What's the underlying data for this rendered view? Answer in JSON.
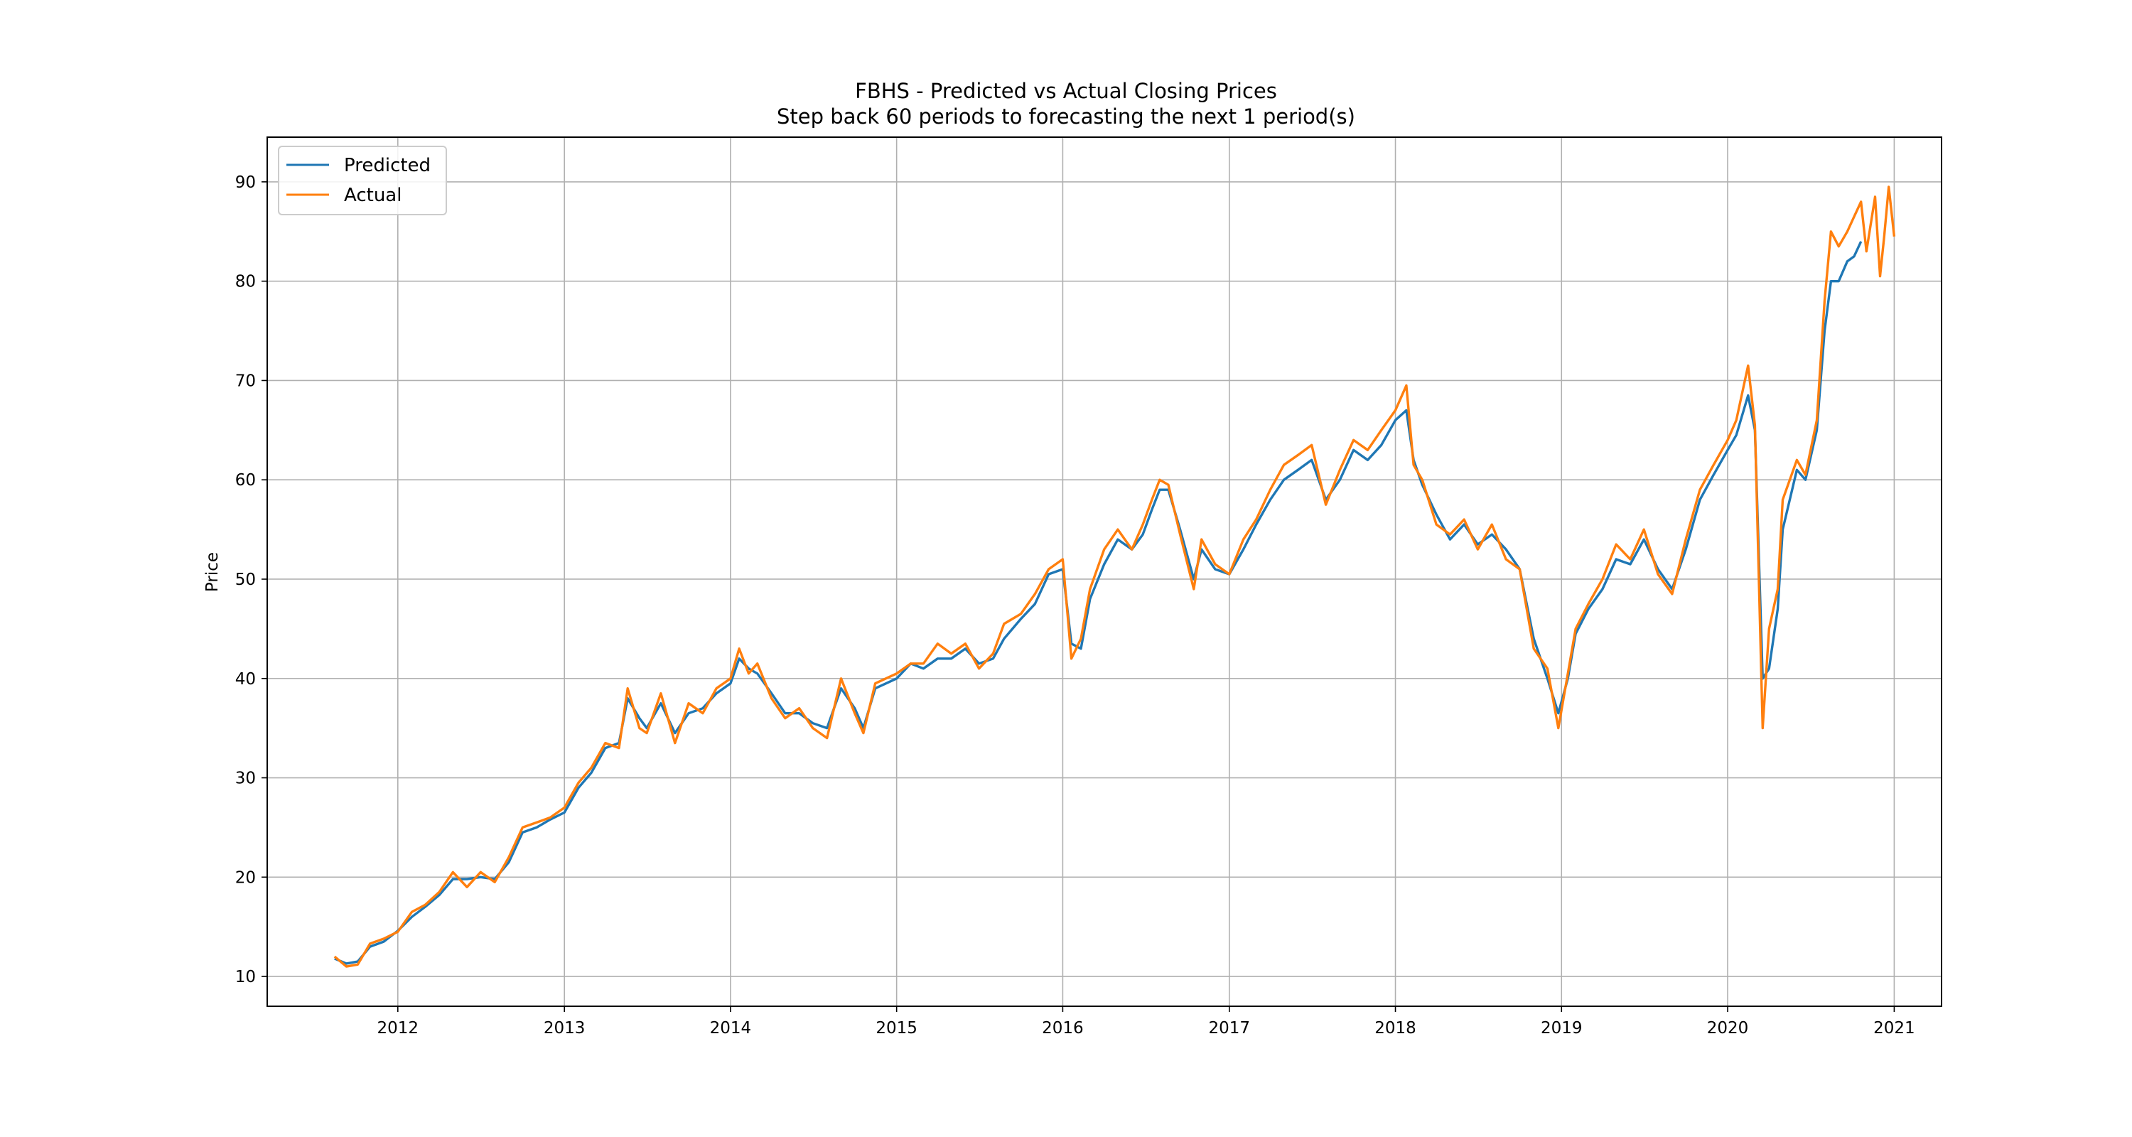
{
  "chart_data": {
    "type": "line",
    "title": "FBHS - Predicted vs Actual Closing Prices",
    "subtitle": "Step back 60 periods to forecasting the next 1 period(s)",
    "xlabel": "",
    "ylabel": "Price",
    "xlim": [
      "2011-03-20",
      "2021-04-15"
    ],
    "ylim": [
      7,
      94.5
    ],
    "x_ticks": [
      "2012",
      "2013",
      "2014",
      "2015",
      "2016",
      "2017",
      "2018",
      "2019",
      "2020",
      "2021"
    ],
    "y_ticks": [
      10,
      20,
      30,
      40,
      50,
      60,
      70,
      80,
      90
    ],
    "grid": true,
    "legend_position": "top-left",
    "colors": {
      "predicted": "#1f77b4",
      "actual": "#ff7f0e"
    },
    "series": [
      {
        "name": "Predicted",
        "x": [
          "2011-08-15",
          "2011-09-10",
          "2011-10-05",
          "2011-11-01",
          "2011-12-01",
          "2012-01-01",
          "2012-02-01",
          "2012-03-01",
          "2012-04-01",
          "2012-05-01",
          "2012-06-01",
          "2012-07-01",
          "2012-08-01",
          "2012-09-01",
          "2012-10-01",
          "2012-11-01",
          "2012-12-01",
          "2013-01-01",
          "2013-02-01",
          "2013-03-01",
          "2013-04-01",
          "2013-05-01",
          "2013-05-20",
          "2013-06-15",
          "2013-07-01",
          "2013-08-01",
          "2013-09-01",
          "2013-10-01",
          "2013-11-01",
          "2013-12-01",
          "2014-01-01",
          "2014-01-20",
          "2014-02-10",
          "2014-03-01",
          "2014-04-01",
          "2014-05-01",
          "2014-06-01",
          "2014-07-01",
          "2014-08-01",
          "2014-09-01",
          "2014-10-01",
          "2014-10-20",
          "2014-11-15",
          "2015-01-01",
          "2015-02-01",
          "2015-03-01",
          "2015-04-01",
          "2015-05-01",
          "2015-06-01",
          "2015-07-01",
          "2015-08-01",
          "2015-08-25",
          "2015-10-01",
          "2015-11-01",
          "2015-12-01",
          "2016-01-01",
          "2016-01-20",
          "2016-02-10",
          "2016-03-01",
          "2016-04-01",
          "2016-05-01",
          "2016-06-01",
          "2016-06-25",
          "2016-07-15",
          "2016-08-01",
          "2016-08-20",
          "2016-09-15",
          "2016-10-15",
          "2016-11-01",
          "2016-12-01",
          "2017-01-01",
          "2017-02-01",
          "2017-03-01",
          "2017-04-01",
          "2017-05-01",
          "2017-06-01",
          "2017-07-01",
          "2017-08-01",
          "2017-09-01",
          "2017-10-01",
          "2017-11-01",
          "2017-12-01",
          "2018-01-01",
          "2018-01-25",
          "2018-02-10",
          "2018-03-01",
          "2018-04-01",
          "2018-05-01",
          "2018-06-01",
          "2018-07-01",
          "2018-08-01",
          "2018-09-01",
          "2018-10-01",
          "2018-11-01",
          "2018-12-01",
          "2018-12-25",
          "2019-01-15",
          "2019-02-01",
          "2019-03-01",
          "2019-04-01",
          "2019-05-01",
          "2019-06-01",
          "2019-07-01",
          "2019-08-01",
          "2019-09-01",
          "2019-10-01",
          "2019-11-01",
          "2019-12-01",
          "2020-01-01",
          "2020-01-20",
          "2020-02-15",
          "2020-03-01",
          "2020-03-18",
          "2020-04-01",
          "2020-04-20",
          "2020-05-01",
          "2020-06-01",
          "2020-06-20",
          "2020-07-15",
          "2020-08-01",
          "2020-08-15",
          "2020-09-01",
          "2020-09-20",
          "2020-10-05",
          "2020-10-20"
        ],
        "y": [
          11.8,
          11.3,
          11.5,
          13.0,
          13.5,
          14.6,
          16.0,
          17.0,
          18.2,
          19.8,
          19.8,
          20.0,
          19.8,
          21.5,
          24.5,
          25.0,
          25.8,
          26.5,
          29.0,
          30.5,
          33.0,
          33.5,
          38.0,
          36.0,
          35.0,
          37.5,
          34.5,
          36.5,
          37.0,
          38.5,
          39.5,
          42.0,
          41.0,
          40.5,
          38.5,
          36.5,
          36.5,
          35.5,
          35.0,
          39.0,
          37.0,
          35.0,
          39.0,
          40.0,
          41.5,
          41.0,
          42.0,
          42.0,
          43.0,
          41.5,
          42.0,
          44.0,
          46.0,
          47.5,
          50.5,
          51.0,
          43.5,
          43.0,
          48.0,
          51.5,
          54.0,
          53.0,
          54.5,
          57.0,
          59.0,
          59.0,
          55.0,
          50.0,
          53.0,
          51.0,
          50.5,
          53.0,
          55.5,
          58.0,
          60.0,
          61.0,
          62.0,
          58.0,
          60.0,
          63.0,
          62.0,
          63.5,
          66.0,
          67.0,
          62.0,
          59.5,
          56.5,
          54.0,
          55.5,
          53.5,
          54.5,
          53.0,
          51.0,
          44.0,
          40.0,
          36.5,
          40.0,
          44.5,
          47.0,
          49.0,
          52.0,
          51.5,
          54.0,
          51.0,
          49.0,
          53.0,
          58.0,
          60.5,
          63.0,
          64.5,
          68.5,
          65.0,
          40.0,
          41.0,
          47.0,
          55.0,
          61.0,
          60.0,
          65.0,
          75.0,
          80.0,
          80.0,
          82.0,
          82.5,
          84.0
        ]
      },
      {
        "name": "Actual",
        "x": [
          "2011-08-15",
          "2011-09-10",
          "2011-10-05",
          "2011-11-01",
          "2011-12-01",
          "2012-01-01",
          "2012-02-01",
          "2012-03-01",
          "2012-04-01",
          "2012-05-01",
          "2012-06-01",
          "2012-07-01",
          "2012-08-01",
          "2012-09-01",
          "2012-10-01",
          "2012-11-01",
          "2012-12-01",
          "2013-01-01",
          "2013-02-01",
          "2013-03-01",
          "2013-04-01",
          "2013-05-01",
          "2013-05-20",
          "2013-06-15",
          "2013-07-01",
          "2013-08-01",
          "2013-09-01",
          "2013-10-01",
          "2013-11-01",
          "2013-12-01",
          "2014-01-01",
          "2014-01-20",
          "2014-02-10",
          "2014-03-01",
          "2014-04-01",
          "2014-05-01",
          "2014-06-01",
          "2014-07-01",
          "2014-08-01",
          "2014-09-01",
          "2014-10-01",
          "2014-10-20",
          "2014-11-15",
          "2015-01-01",
          "2015-02-01",
          "2015-03-01",
          "2015-04-01",
          "2015-05-01",
          "2015-06-01",
          "2015-07-01",
          "2015-08-01",
          "2015-08-25",
          "2015-10-01",
          "2015-11-01",
          "2015-12-01",
          "2016-01-01",
          "2016-01-20",
          "2016-02-10",
          "2016-03-01",
          "2016-04-01",
          "2016-05-01",
          "2016-06-01",
          "2016-06-25",
          "2016-07-15",
          "2016-08-01",
          "2016-08-20",
          "2016-09-15",
          "2016-10-15",
          "2016-11-01",
          "2016-12-01",
          "2017-01-01",
          "2017-02-01",
          "2017-03-01",
          "2017-04-01",
          "2017-05-01",
          "2017-06-01",
          "2017-07-01",
          "2017-08-01",
          "2017-09-01",
          "2017-10-01",
          "2017-11-01",
          "2017-12-01",
          "2018-01-01",
          "2018-01-25",
          "2018-02-10",
          "2018-03-01",
          "2018-04-01",
          "2018-05-01",
          "2018-06-01",
          "2018-07-01",
          "2018-08-01",
          "2018-09-01",
          "2018-10-01",
          "2018-11-01",
          "2018-12-01",
          "2018-12-25",
          "2019-01-15",
          "2019-02-01",
          "2019-03-01",
          "2019-04-01",
          "2019-05-01",
          "2019-06-01",
          "2019-07-01",
          "2019-08-01",
          "2019-09-01",
          "2019-10-01",
          "2019-11-01",
          "2019-12-01",
          "2020-01-01",
          "2020-01-20",
          "2020-02-15",
          "2020-03-01",
          "2020-03-18",
          "2020-04-01",
          "2020-04-20",
          "2020-05-01",
          "2020-06-01",
          "2020-06-20",
          "2020-07-15",
          "2020-08-01",
          "2020-08-15",
          "2020-09-01",
          "2020-09-20",
          "2020-10-05",
          "2020-10-20",
          "2020-11-01",
          "2020-11-20",
          "2020-12-01",
          "2020-12-10",
          "2020-12-20",
          "2021-01-01"
        ],
        "y": [
          12.0,
          11.0,
          11.2,
          13.3,
          13.8,
          14.5,
          16.5,
          17.2,
          18.5,
          20.5,
          19.0,
          20.5,
          19.5,
          22.0,
          25.0,
          25.5,
          26.0,
          27.0,
          29.5,
          31.0,
          33.5,
          33.0,
          39.0,
          35.0,
          34.5,
          38.5,
          33.5,
          37.5,
          36.5,
          39.0,
          40.0,
          43.0,
          40.5,
          41.5,
          38.0,
          36.0,
          37.0,
          35.0,
          34.0,
          40.0,
          36.5,
          34.5,
          39.5,
          40.5,
          41.5,
          41.5,
          43.5,
          42.5,
          43.5,
          41.0,
          42.5,
          45.5,
          46.5,
          48.5,
          51.0,
          52.0,
          42.0,
          44.0,
          49.0,
          53.0,
          55.0,
          53.0,
          55.5,
          58.0,
          60.0,
          59.5,
          54.5,
          49.0,
          54.0,
          51.5,
          50.5,
          54.0,
          56.0,
          59.0,
          61.5,
          62.5,
          63.5,
          57.5,
          61.0,
          64.0,
          63.0,
          65.0,
          67.0,
          69.5,
          61.5,
          60.0,
          55.5,
          54.5,
          56.0,
          53.0,
          55.5,
          52.0,
          51.0,
          43.0,
          41.0,
          35.0,
          40.5,
          45.0,
          47.5,
          50.0,
          53.5,
          52.0,
          55.0,
          50.5,
          48.5,
          54.0,
          59.0,
          61.5,
          64.0,
          66.0,
          71.5,
          65.5,
          35.0,
          45.0,
          49.0,
          58.0,
          62.0,
          60.5,
          66.0,
          78.0,
          85.0,
          83.5,
          85.0,
          86.5,
          88.0,
          83.0,
          88.5,
          80.5,
          84.5,
          89.5,
          84.5
        ]
      }
    ]
  }
}
